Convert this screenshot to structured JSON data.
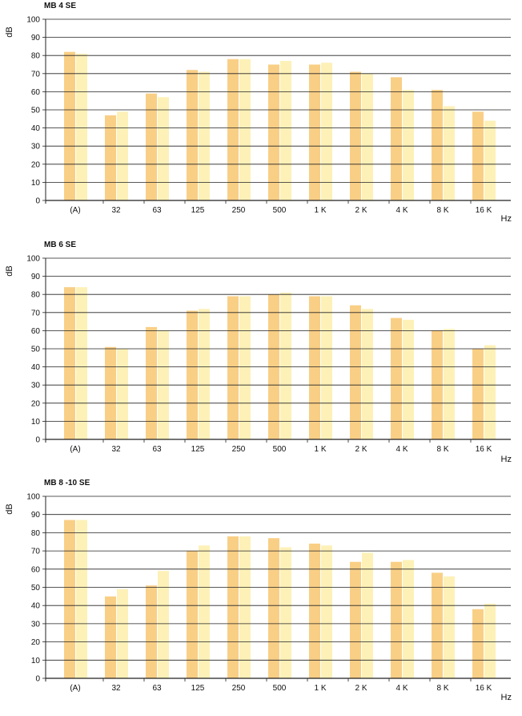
{
  "colors": {
    "series_a": "#f9cf86",
    "series_b": "#fdf1b8",
    "grid": "#222222"
  },
  "chart_data": [
    {
      "type": "bar",
      "title": "MB 4 SE",
      "xlabel": "Hz",
      "ylabel": "dB",
      "ylim": [
        0,
        100
      ],
      "yticks": [
        "0",
        "10",
        "20",
        "30",
        "40",
        "50",
        "60",
        "70",
        "80",
        "90",
        "100"
      ],
      "grid": true,
      "categories": [
        "(A)",
        "32",
        "63",
        "125",
        "250",
        "500",
        "1 K",
        "2 K",
        "4 K",
        "8 K",
        "16 K"
      ],
      "series": [
        {
          "values": [
            82,
            47,
            59,
            72,
            78,
            75,
            75,
            71,
            68,
            61,
            49
          ]
        },
        {
          "values": [
            81,
            49,
            57,
            71,
            78,
            77,
            76,
            70,
            61,
            52,
            44
          ]
        }
      ]
    },
    {
      "type": "bar",
      "title": "MB 6 SE",
      "xlabel": "Hz",
      "ylabel": "dB",
      "ylim": [
        0,
        100
      ],
      "yticks": [
        "0",
        "10",
        "20",
        "30",
        "40",
        "50",
        "60",
        "70",
        "80",
        "90",
        "100"
      ],
      "grid": true,
      "categories": [
        "(A)",
        "32",
        "63",
        "125",
        "250",
        "500",
        "1 K",
        "2 K",
        "4 K",
        "8 K",
        "16 K"
      ],
      "series": [
        {
          "values": [
            84,
            51,
            62,
            71,
            79,
            80,
            79,
            74,
            67,
            60,
            50
          ]
        },
        {
          "values": [
            84,
            50,
            60,
            72,
            79,
            81,
            79,
            72,
            66,
            61,
            52
          ]
        }
      ]
    },
    {
      "type": "bar",
      "title": "MB 8 -10 SE",
      "xlabel": "Hz",
      "ylabel": "dB",
      "ylim": [
        0,
        100
      ],
      "yticks": [
        "0",
        "10",
        "20",
        "30",
        "40",
        "50",
        "60",
        "70",
        "80",
        "90",
        "100"
      ],
      "grid": true,
      "categories": [
        "(A)",
        "32",
        "63",
        "125",
        "250",
        "500",
        "1 K",
        "2 K",
        "4 K",
        "8 K",
        "16 K"
      ],
      "series": [
        {
          "values": [
            87,
            45,
            51,
            70,
            78,
            77,
            74,
            64,
            64,
            58,
            38
          ]
        },
        {
          "values": [
            87,
            49,
            59,
            73,
            78,
            72,
            73,
            69,
            65,
            56,
            41
          ]
        }
      ]
    }
  ]
}
